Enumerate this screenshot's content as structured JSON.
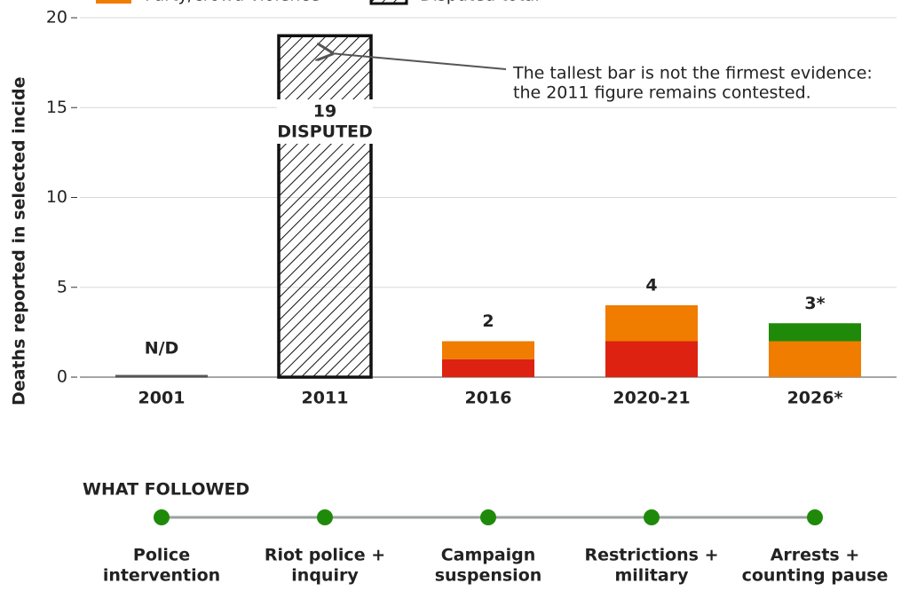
{
  "chart_data": {
    "type": "stacked_bar",
    "y_label": "Deaths reported in selected incide",
    "categories": [
      "2001",
      "2011",
      "2016",
      "2020-21",
      "2026*"
    ],
    "series": [
      {
        "color": "#dd2211",
        "values": [
          null,
          null,
          1,
          2,
          null
        ]
      },
      {
        "name": "Party/crowd violence",
        "color": "#f07c00",
        "values": [
          null,
          null,
          1,
          2,
          2
        ]
      },
      {
        "color": "#1f8a0a",
        "values": [
          null,
          null,
          null,
          null,
          1
        ]
      },
      {
        "name": "Disputed total",
        "color": "#111111",
        "hatch": true,
        "values": [
          null,
          19,
          null,
          null,
          null
        ]
      }
    ],
    "totals": {
      "values": [
        null,
        19,
        2,
        4,
        3
      ],
      "value_labels": [
        "N/D",
        "19",
        "2",
        "4",
        "3*"
      ]
    },
    "disputed_label": "DISPUTED",
    "annotation": [
      "The tallest bar is not the firmest evidence:",
      "the 2011 figure remains contested."
    ],
    "ylim": [
      0,
      20
    ],
    "yticks": [
      0,
      5,
      10,
      15,
      20
    ],
    "grid": true
  },
  "timeline": {
    "title": "WHAT FOLLOWED",
    "color": "#1f8a0a",
    "nodes": [
      [
        "Police",
        "intervention"
      ],
      [
        "Riot police +",
        "inquiry"
      ],
      [
        "Campaign",
        "suspension"
      ],
      [
        "Restrictions +",
        "military"
      ],
      [
        "Arrests +",
        "counting pause"
      ]
    ]
  }
}
